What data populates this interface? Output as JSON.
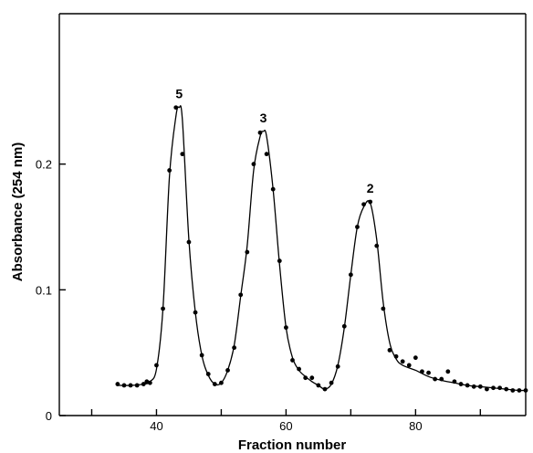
{
  "chart_data": {
    "type": "scatter",
    "title": "",
    "xlabel": "Fraction number",
    "ylabel": "Absorbance (254 nm)",
    "xlim": [
      25,
      97
    ],
    "ylim": [
      0,
      0.3
    ],
    "xticks": [
      30,
      40,
      50,
      60,
      70,
      80,
      90
    ],
    "xtick_labels": [
      "",
      "40",
      "",
      "60",
      "",
      "80",
      ""
    ],
    "yticks": [
      0,
      0.1,
      0.2
    ],
    "ytick_labels": [
      "0",
      "0.1",
      "0.2"
    ],
    "grid": false,
    "series": [
      {
        "values_x": [
          34,
          35,
          36,
          37,
          38,
          38.5,
          39,
          40,
          41,
          42,
          43,
          44,
          45,
          46,
          47,
          48,
          49,
          50,
          51,
          52,
          53,
          54,
          55,
          56,
          57,
          58,
          59,
          60,
          61,
          62,
          63,
          64,
          65,
          66,
          67,
          68,
          69,
          70,
          71,
          72,
          73,
          74,
          75,
          76,
          77,
          78,
          79,
          80,
          81,
          82,
          83,
          84,
          85,
          86,
          87,
          88,
          89,
          90,
          91,
          92,
          93,
          94,
          95,
          96,
          97
        ],
        "values_y": [
          0.025,
          0.024,
          0.024,
          0.024,
          0.025,
          0.027,
          0.026,
          0.04,
          0.085,
          0.195,
          0.245,
          0.208,
          0.138,
          0.082,
          0.048,
          0.033,
          0.025,
          0.026,
          0.036,
          0.054,
          0.096,
          0.13,
          0.2,
          0.225,
          0.208,
          0.18,
          0.123,
          0.07,
          0.044,
          0.037,
          0.03,
          0.03,
          0.024,
          0.021,
          0.026,
          0.039,
          0.071,
          0.112,
          0.15,
          0.168,
          0.17,
          0.135,
          0.085,
          0.052,
          0.047,
          0.043,
          0.04,
          0.046,
          0.035,
          0.034,
          0.029,
          0.029,
          0.035,
          0.027,
          0.025,
          0.024,
          0.023,
          0.023,
          0.021,
          0.022,
          0.022,
          0.021,
          0.02,
          0.02,
          0.02
        ]
      }
    ],
    "curve": {
      "x": [
        34,
        36,
        38,
        39,
        40,
        41,
        42,
        43,
        43.5,
        44,
        45,
        46,
        47,
        48,
        49,
        50,
        51,
        52,
        53,
        54,
        55,
        56,
        56.5,
        57,
        58,
        59,
        60,
        61,
        62,
        63,
        64,
        65,
        66,
        67,
        68,
        69,
        70,
        71,
        72,
        73,
        74,
        75,
        76,
        77,
        78,
        80,
        82,
        84,
        86,
        88,
        90,
        92,
        94,
        96,
        97
      ],
      "y": [
        0.024,
        0.024,
        0.025,
        0.027,
        0.037,
        0.085,
        0.19,
        0.238,
        0.245,
        0.235,
        0.14,
        0.082,
        0.048,
        0.032,
        0.025,
        0.026,
        0.036,
        0.056,
        0.095,
        0.135,
        0.195,
        0.222,
        0.226,
        0.222,
        0.18,
        0.12,
        0.07,
        0.046,
        0.036,
        0.031,
        0.027,
        0.024,
        0.021,
        0.025,
        0.04,
        0.07,
        0.112,
        0.15,
        0.166,
        0.169,
        0.14,
        0.09,
        0.058,
        0.045,
        0.04,
        0.036,
        0.031,
        0.028,
        0.026,
        0.024,
        0.023,
        0.022,
        0.021,
        0.02,
        0.02
      ]
    },
    "annotations": [
      {
        "text": "5",
        "x": 43.5,
        "y": 0.245
      },
      {
        "text": "3",
        "x": 56.5,
        "y": 0.226
      },
      {
        "text": "2",
        "x": 73,
        "y": 0.17
      }
    ]
  }
}
